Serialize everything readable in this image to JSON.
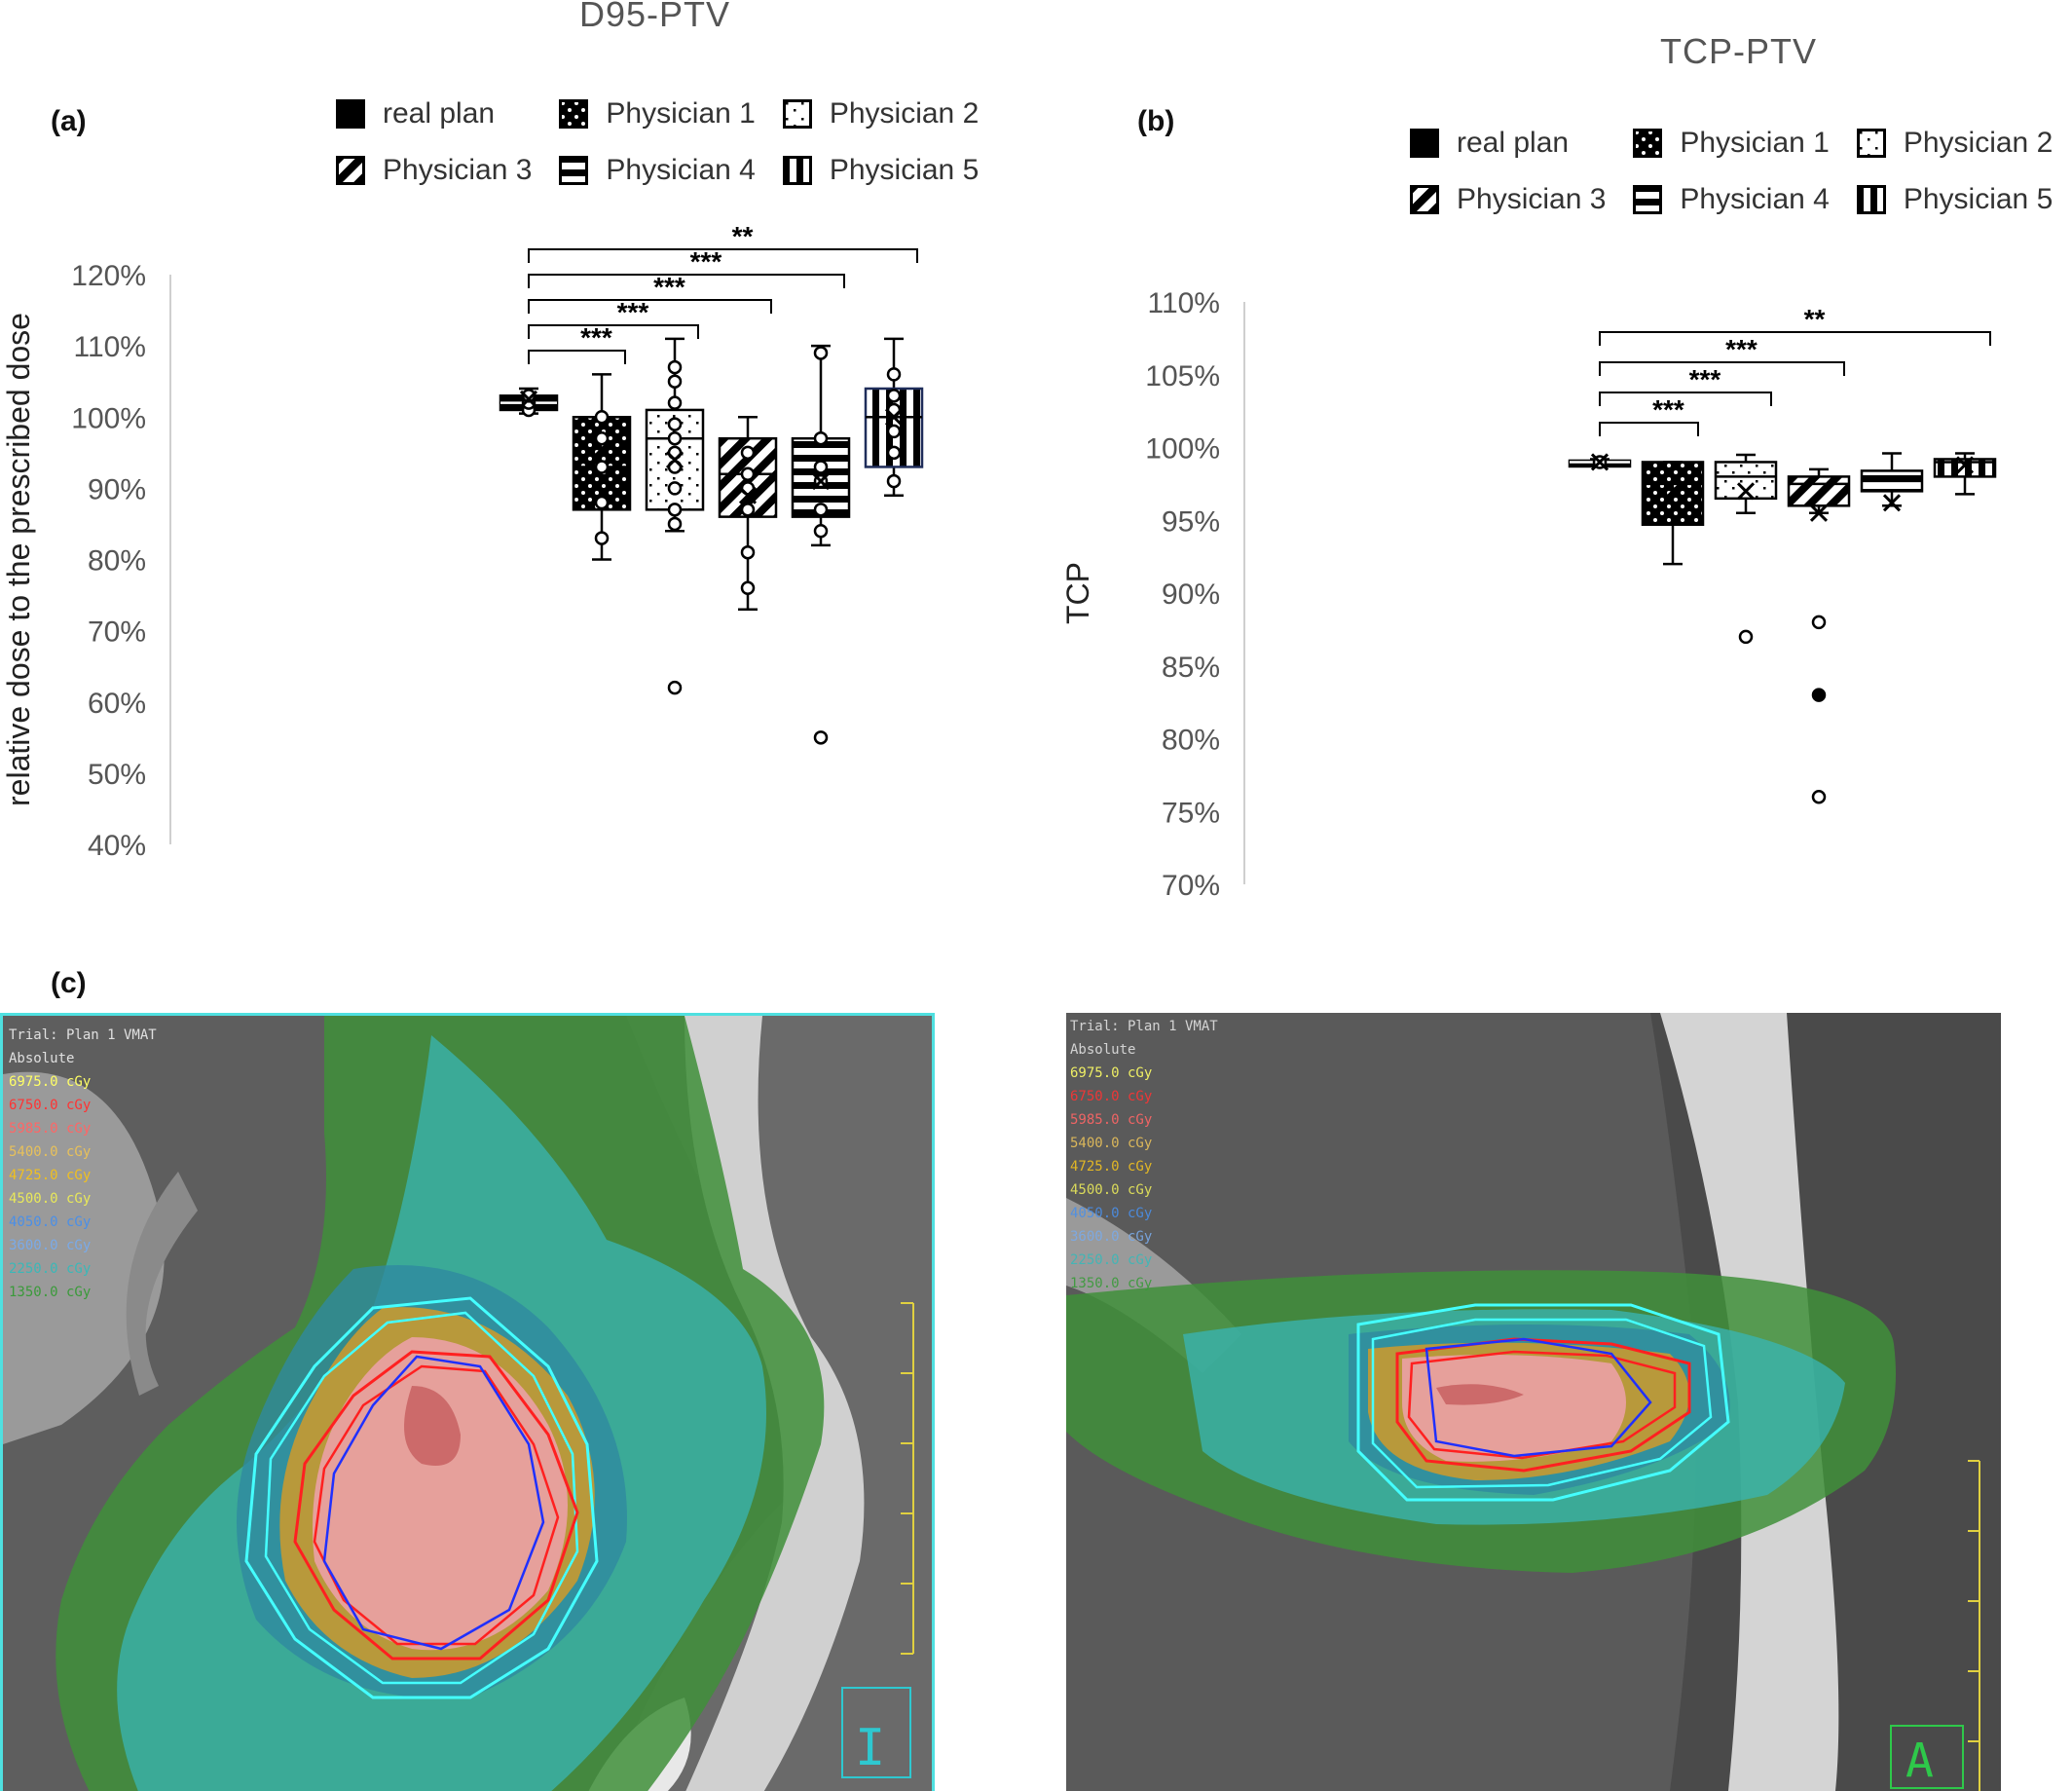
{
  "panel_labels": {
    "a": "(a)",
    "b": "(b)",
    "c": "(c)"
  },
  "chart_data": [
    {
      "type": "box",
      "title": "D95-PTV",
      "ylabel": "relative dose to the prescribed dose",
      "xlabel": "",
      "ylim": [
        0.4,
        1.2
      ],
      "y_ticks": [
        "40%",
        "50%",
        "60%",
        "70%",
        "80%",
        "90%",
        "100%",
        "110%",
        "120%"
      ],
      "grid": false,
      "legend_position": "top",
      "categories": [
        "real plan",
        "Physician 1",
        "Physician 2",
        "Physician 3",
        "Physician 4",
        "Physician 5"
      ],
      "series": [
        {
          "name": "real plan",
          "pattern": "solid",
          "min": 1.005,
          "q1": 1.01,
          "median": 1.02,
          "q3": 1.03,
          "max": 1.04,
          "mean": 1.025,
          "points": [
            1.01,
            1.02,
            1.03
          ],
          "outliers": []
        },
        {
          "name": "Physician 1",
          "pattern": "dots",
          "min": 0.8,
          "q1": 0.87,
          "median": 0.93,
          "q3": 1.0,
          "max": 1.06,
          "mean": 0.955,
          "points": [
            0.83,
            0.88,
            0.93,
            0.97,
            1.0
          ],
          "outliers": []
        },
        {
          "name": "Physician 2",
          "pattern": "sparse",
          "min": 0.84,
          "q1": 0.87,
          "median": 0.97,
          "q3": 1.01,
          "max": 1.11,
          "mean": 0.94,
          "points": [
            0.85,
            0.87,
            0.9,
            0.93,
            0.95,
            0.97,
            0.99,
            1.02,
            1.05,
            1.07
          ],
          "outliers": [
            0.62
          ]
        },
        {
          "name": "Physician 3",
          "pattern": "diag",
          "min": 0.73,
          "q1": 0.86,
          "median": 0.92,
          "q3": 0.97,
          "max": 1.0,
          "mean": 0.89,
          "points": [
            0.76,
            0.81,
            0.87,
            0.9,
            0.92,
            0.95
          ],
          "outliers": []
        },
        {
          "name": "Physician 4",
          "pattern": "hlines",
          "min": 0.82,
          "q1": 0.86,
          "median": 0.92,
          "q3": 0.97,
          "max": 1.1,
          "mean": 0.91,
          "points": [
            0.84,
            0.87,
            0.91,
            0.93,
            0.97,
            1.09
          ],
          "outliers": [
            0.55
          ]
        },
        {
          "name": "Physician 5",
          "pattern": "vlines",
          "min": 0.89,
          "q1": 0.93,
          "median": 1.0,
          "q3": 1.04,
          "max": 1.11,
          "mean": 1.0,
          "points": [
            0.91,
            0.95,
            0.98,
            1.01,
            1.03,
            1.06
          ],
          "outliers": []
        }
      ],
      "significance": [
        {
          "from": 0,
          "to": 1,
          "label": "***"
        },
        {
          "from": 0,
          "to": 2,
          "label": "***"
        },
        {
          "from": 0,
          "to": 3,
          "label": "***"
        },
        {
          "from": 0,
          "to": 4,
          "label": "***"
        },
        {
          "from": 0,
          "to": 5,
          "label": "**"
        }
      ]
    },
    {
      "type": "box",
      "title": "TCP-PTV",
      "ylabel": "TCP",
      "xlabel": "",
      "ylim": [
        0.7,
        1.1
      ],
      "y_ticks": [
        "70%",
        "75%",
        "80%",
        "85%",
        "90%",
        "95%",
        "100%",
        "105%",
        "110%"
      ],
      "grid": false,
      "legend_position": "top",
      "categories": [
        "real plan",
        "Physician 1",
        "Physician 2",
        "Physician 3",
        "Physician 4",
        "Physician 5"
      ],
      "series": [
        {
          "name": "real plan",
          "pattern": "solid",
          "min": 0.988,
          "q1": 0.989,
          "median": 0.99,
          "q3": 0.991,
          "max": 0.992,
          "mean": 0.99,
          "points": [
            0.99
          ],
          "outliers": []
        },
        {
          "name": "Physician 1",
          "pattern": "dots",
          "min": 0.92,
          "q1": 0.947,
          "median": 0.975,
          "q3": 0.99,
          "max": 0.99,
          "mean": 0.97,
          "points": [],
          "outliers": []
        },
        {
          "name": "Physician 2",
          "pattern": "sparse",
          "min": 0.955,
          "q1": 0.965,
          "median": 0.98,
          "q3": 0.99,
          "max": 0.995,
          "mean": 0.97,
          "points": [],
          "outliers": [
            0.87
          ]
        },
        {
          "name": "Physician 3",
          "pattern": "diag",
          "min": 0.955,
          "q1": 0.96,
          "median": 0.975,
          "q3": 0.98,
          "max": 0.985,
          "mean": 0.955,
          "points": [],
          "outliers": [
            0.88,
            0.83,
            0.76
          ]
        },
        {
          "name": "Physician 4",
          "pattern": "hlines",
          "min": 0.96,
          "q1": 0.97,
          "median": 0.977,
          "q3": 0.984,
          "max": 0.996,
          "mean": 0.962,
          "points": [],
          "outliers": []
        },
        {
          "name": "Physician 5",
          "pattern": "vlines",
          "min": 0.968,
          "q1": 0.98,
          "median": 0.99,
          "q3": 0.992,
          "max": 0.996,
          "mean": 0.988,
          "points": [],
          "outliers": []
        }
      ],
      "significance": [
        {
          "from": 0,
          "to": 1,
          "label": "***"
        },
        {
          "from": 0,
          "to": 2,
          "label": "***"
        },
        {
          "from": 0,
          "to": 3,
          "label": "***"
        },
        {
          "from": 0,
          "to": 5,
          "label": "**"
        }
      ]
    }
  ],
  "scan_left": {
    "title_lines": [
      "Trial: Plan 1 VMAT",
      "Absolute"
    ],
    "isodose_legend": [
      {
        "label": "6975.0 cGy",
        "color": "#ffff66"
      },
      {
        "label": "6750.0 cGy",
        "color": "#ff3333"
      },
      {
        "label": "5985.0 cGy",
        "color": "#ff6666"
      },
      {
        "label": "5400.0 cGy",
        "color": "#e8c15a"
      },
      {
        "label": "4725.0 cGy",
        "color": "#f0c020"
      },
      {
        "label": "4500.0 cGy",
        "color": "#e8e85a"
      },
      {
        "label": "4050.0 cGy",
        "color": "#4a8fe8"
      },
      {
        "label": "3600.0 cGy",
        "color": "#7aaae8"
      },
      {
        "label": "2250.0 cGy",
        "color": "#3ab8b8"
      },
      {
        "label": "1350.0 cGy",
        "color": "#3a9a3a"
      }
    ],
    "orientation_letter": "I"
  },
  "scan_right": {
    "title_lines": [
      "Trial: Plan 1 VMAT",
      "Absolute"
    ],
    "isodose_legend": [
      {
        "label": "6975.0 cGy",
        "color": "#ffff66"
      },
      {
        "label": "6750.0 cGy",
        "color": "#ff3333"
      },
      {
        "label": "5985.0 cGy",
        "color": "#ff6666"
      },
      {
        "label": "5400.0 cGy",
        "color": "#e8c15a"
      },
      {
        "label": "4725.0 cGy",
        "color": "#f0c020"
      },
      {
        "label": "4500.0 cGy",
        "color": "#e8e85a"
      },
      {
        "label": "4050.0 cGy",
        "color": "#4a8fe8"
      },
      {
        "label": "3600.0 cGy",
        "color": "#7aaae8"
      },
      {
        "label": "2250.0 cGy",
        "color": "#3ab8b8"
      },
      {
        "label": "1350.0 cGy",
        "color": "#3a9a3a"
      }
    ],
    "orientation_letter": "A"
  }
}
